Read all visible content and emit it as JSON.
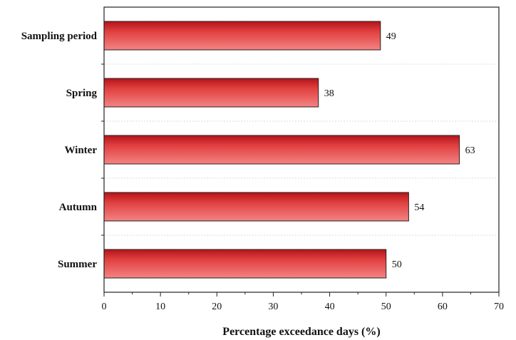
{
  "chart_data": {
    "type": "bar",
    "orientation": "horizontal",
    "categories": [
      "Sampling period",
      "Spring",
      "Winter",
      "Autumn",
      "Summer"
    ],
    "values": [
      49,
      38,
      63,
      54,
      50
    ],
    "xlabel": "Percentage exceedance days (%)",
    "ylabel": "",
    "xlim": [
      0,
      70
    ],
    "xticks": [
      0,
      10,
      20,
      30,
      40,
      50,
      60,
      70
    ],
    "grid": "horizontal dashed separators between categories",
    "bar_color": "#e0403f",
    "bar_dark_color": "#b5131a",
    "bar_light_color": "#f48383"
  }
}
